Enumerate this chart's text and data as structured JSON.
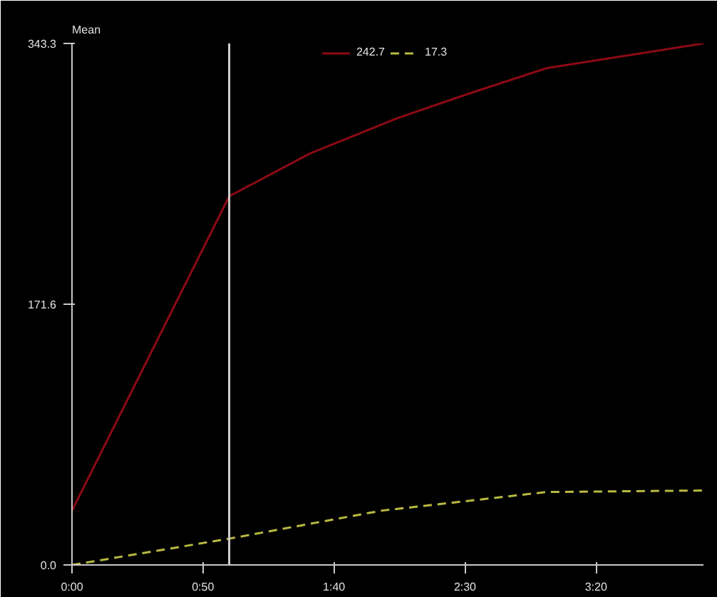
{
  "chart_data": {
    "type": "line",
    "title": "Mean",
    "xlim": [
      0,
      241
    ],
    "ylim": [
      0,
      343.3
    ],
    "xticks": [
      {
        "value": 0,
        "label": "0:00"
      },
      {
        "value": 50,
        "label": "0:50"
      },
      {
        "value": 100,
        "label": "1:40"
      },
      {
        "value": 150,
        "label": "2:30"
      },
      {
        "value": 200,
        "label": "3:20"
      }
    ],
    "yticks": [
      {
        "value": 0,
        "label": "0.0"
      },
      171.6,
      343.3
    ],
    "series": [
      {
        "name": "242.7",
        "color": "#8b0a14",
        "line_style": "solid",
        "x": [
          0,
          60,
          91,
          124,
          151,
          181,
          241
        ],
        "values": [
          35.7,
          242.7,
          271,
          294,
          310,
          327,
          343.3
        ]
      },
      {
        "name": "17.3",
        "color": "#b8b840",
        "line_style": "dashed",
        "x": [
          0,
          60,
          118,
          181,
          241
        ],
        "values": [
          0,
          17.3,
          35.7,
          48,
          49
        ]
      }
    ],
    "ref_lines": [
      {
        "axis": "x",
        "value": 60,
        "color": "#d0d0d0"
      }
    ],
    "legend": "top",
    "grid": false
  }
}
